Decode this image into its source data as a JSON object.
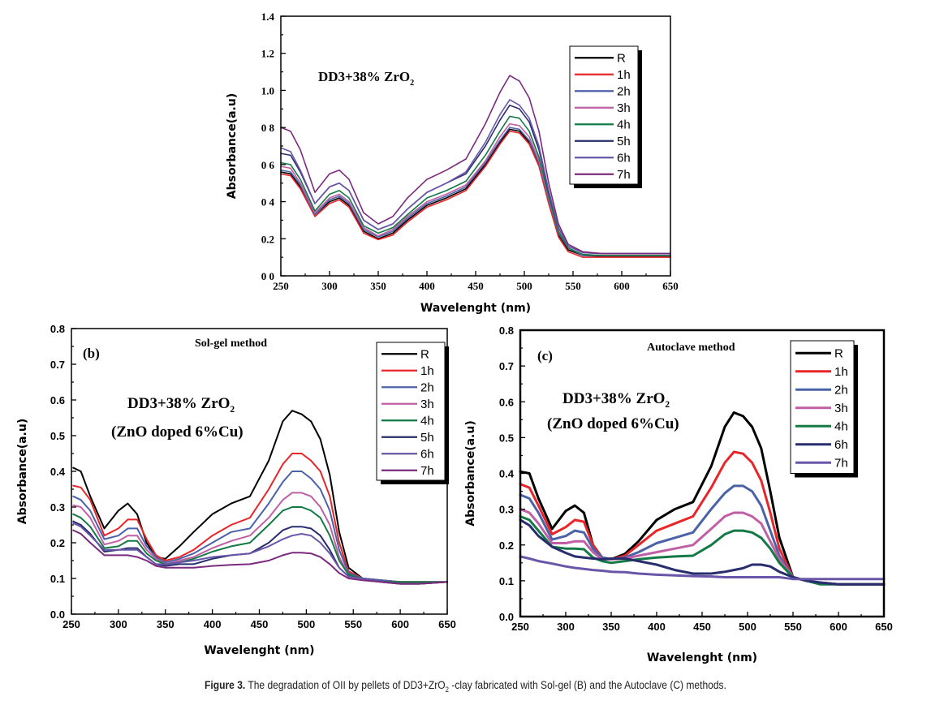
{
  "caption": {
    "label": "Figure 3.",
    "text_before": " The degradation of OII by pellets of DD3+ZrO",
    "subscript": "2",
    "text_after": " -clay fabricated with Sol-gel (B) and the Autoclave (C) methods."
  },
  "chart_data": [
    {
      "id": "a",
      "type": "line",
      "title": "",
      "annotations": [
        {
          "text": "DD3+38% ZrO",
          "sub": "2"
        }
      ],
      "xlabel": "Wavelenght (nm)",
      "ylabel": "Absorbance(a.u)",
      "xlim": [
        250,
        650
      ],
      "ylim": [
        0,
        1.4
      ],
      "xticks": [
        250,
        300,
        350,
        400,
        450,
        500,
        550,
        600,
        650
      ],
      "yticks": [
        0.0,
        0.2,
        0.4,
        0.6,
        0.8,
        1.0,
        1.2,
        1.4
      ],
      "ytick_labels": [
        "0 0",
        "0.2",
        "0 4",
        "0 6",
        "0 8",
        "1.0",
        "1.2",
        "1.4"
      ],
      "grid": false,
      "legend_position": "top-right",
      "x": [
        250,
        260,
        270,
        285,
        300,
        310,
        320,
        335,
        350,
        365,
        380,
        400,
        420,
        440,
        460,
        475,
        485,
        495,
        505,
        515,
        525,
        535,
        545,
        560,
        580,
        600,
        620,
        650
      ],
      "series": [
        {
          "name": "R",
          "color": "#000000",
          "values": [
            0.56,
            0.55,
            0.48,
            0.33,
            0.4,
            0.42,
            0.38,
            0.24,
            0.2,
            0.23,
            0.3,
            0.38,
            0.42,
            0.47,
            0.6,
            0.72,
            0.79,
            0.78,
            0.72,
            0.6,
            0.4,
            0.22,
            0.14,
            0.11,
            0.105,
            0.105,
            0.105,
            0.105
          ]
        },
        {
          "name": "1h",
          "color": "#e8262a",
          "values": [
            0.55,
            0.54,
            0.47,
            0.32,
            0.39,
            0.41,
            0.37,
            0.23,
            0.195,
            0.22,
            0.29,
            0.37,
            0.41,
            0.46,
            0.59,
            0.71,
            0.78,
            0.77,
            0.71,
            0.59,
            0.39,
            0.21,
            0.13,
            0.1,
            0.1,
            0.1,
            0.1,
            0.1
          ]
        },
        {
          "name": "2h",
          "color": "#4a63a8",
          "values": [
            0.57,
            0.56,
            0.49,
            0.33,
            0.41,
            0.43,
            0.39,
            0.25,
            0.21,
            0.24,
            0.31,
            0.39,
            0.43,
            0.48,
            0.61,
            0.73,
            0.8,
            0.79,
            0.73,
            0.61,
            0.41,
            0.23,
            0.15,
            0.11,
            0.11,
            0.11,
            0.11,
            0.11
          ]
        },
        {
          "name": "3h",
          "color": "#c05fa5",
          "values": [
            0.59,
            0.58,
            0.5,
            0.34,
            0.42,
            0.44,
            0.4,
            0.26,
            0.215,
            0.25,
            0.32,
            0.4,
            0.44,
            0.49,
            0.62,
            0.75,
            0.82,
            0.81,
            0.75,
            0.62,
            0.42,
            0.24,
            0.15,
            0.115,
            0.11,
            0.11,
            0.11,
            0.11
          ]
        },
        {
          "name": "4h",
          "color": "#137a45",
          "values": [
            0.61,
            0.6,
            0.52,
            0.35,
            0.44,
            0.46,
            0.42,
            0.27,
            0.23,
            0.26,
            0.33,
            0.42,
            0.46,
            0.51,
            0.65,
            0.78,
            0.86,
            0.85,
            0.78,
            0.64,
            0.43,
            0.24,
            0.15,
            0.115,
            0.11,
            0.11,
            0.11,
            0.11
          ]
        },
        {
          "name": "5h",
          "color": "#282d6e",
          "values": [
            0.66,
            0.65,
            0.56,
            0.39,
            0.48,
            0.5,
            0.46,
            0.3,
            0.25,
            0.28,
            0.36,
            0.45,
            0.5,
            0.55,
            0.7,
            0.84,
            0.92,
            0.9,
            0.83,
            0.68,
            0.45,
            0.26,
            0.16,
            0.125,
            0.12,
            0.12,
            0.12,
            0.12
          ]
        },
        {
          "name": "6h",
          "color": "#6a56a8",
          "values": [
            0.69,
            0.67,
            0.57,
            0.39,
            0.48,
            0.5,
            0.46,
            0.3,
            0.25,
            0.28,
            0.36,
            0.45,
            0.5,
            0.56,
            0.72,
            0.87,
            0.95,
            0.92,
            0.85,
            0.7,
            0.46,
            0.26,
            0.16,
            0.125,
            0.12,
            0.12,
            0.12,
            0.12
          ]
        },
        {
          "name": "7h",
          "color": "#7b2a7e",
          "values": [
            0.8,
            0.78,
            0.68,
            0.45,
            0.55,
            0.57,
            0.52,
            0.34,
            0.28,
            0.32,
            0.42,
            0.52,
            0.57,
            0.63,
            0.82,
            0.99,
            1.08,
            1.05,
            0.96,
            0.78,
            0.5,
            0.28,
            0.17,
            0.13,
            0.12,
            0.12,
            0.12,
            0.12
          ]
        }
      ]
    },
    {
      "id": "b",
      "type": "line",
      "title": "Sol-gel method",
      "panel_label": "(b)",
      "annotations": [
        {
          "text": "DD3+38% ZrO",
          "sub": "2"
        },
        {
          "text": "(ZnO doped 6%Cu)",
          "sub": ""
        }
      ],
      "xlabel": "Wavelenght (nm)",
      "ylabel": "Absorbance(a.u)",
      "xlim": [
        250,
        650
      ],
      "ylim": [
        0,
        0.8
      ],
      "xticks": [
        250,
        300,
        350,
        400,
        450,
        500,
        550,
        600,
        650
      ],
      "yticks": [
        0.0,
        0.1,
        0.2,
        0.3,
        0.4,
        0.5,
        0.6,
        0.7,
        0.8
      ],
      "ytick_labels": [
        "0.0",
        "0.1",
        "0.2",
        "0.3",
        "0.4",
        "0.5",
        "0.6",
        "0.7",
        "0.8"
      ],
      "grid": false,
      "legend_position": "top-right",
      "x": [
        252,
        260,
        270,
        285,
        300,
        310,
        320,
        330,
        340,
        350,
        365,
        380,
        400,
        420,
        440,
        460,
        475,
        485,
        495,
        505,
        515,
        525,
        535,
        545,
        560,
        580,
        600,
        620,
        650
      ],
      "series": [
        {
          "name": "R",
          "color": "#000000",
          "values": [
            0.41,
            0.4,
            0.33,
            0.24,
            0.29,
            0.31,
            0.28,
            0.2,
            0.16,
            0.155,
            0.19,
            0.23,
            0.28,
            0.31,
            0.33,
            0.43,
            0.54,
            0.57,
            0.56,
            0.54,
            0.49,
            0.39,
            0.23,
            0.13,
            0.1,
            0.095,
            0.09,
            0.09,
            0.09
          ]
        },
        {
          "name": "1h",
          "color": "#e8262a",
          "values": [
            0.36,
            0.355,
            0.32,
            0.22,
            0.24,
            0.265,
            0.265,
            0.21,
            0.165,
            0.15,
            0.16,
            0.18,
            0.22,
            0.25,
            0.27,
            0.35,
            0.42,
            0.45,
            0.45,
            0.43,
            0.4,
            0.33,
            0.2,
            0.12,
            0.1,
            0.095,
            0.09,
            0.09,
            0.09
          ]
        },
        {
          "name": "2h",
          "color": "#4a63a8",
          "values": [
            0.33,
            0.32,
            0.29,
            0.21,
            0.22,
            0.24,
            0.24,
            0.19,
            0.16,
            0.145,
            0.155,
            0.17,
            0.2,
            0.23,
            0.24,
            0.31,
            0.37,
            0.4,
            0.4,
            0.38,
            0.35,
            0.29,
            0.18,
            0.115,
            0.1,
            0.095,
            0.09,
            0.09,
            0.09
          ]
        },
        {
          "name": "3h",
          "color": "#c05fa5",
          "values": [
            0.305,
            0.3,
            0.27,
            0.195,
            0.205,
            0.22,
            0.22,
            0.18,
            0.155,
            0.14,
            0.15,
            0.16,
            0.185,
            0.205,
            0.22,
            0.27,
            0.32,
            0.34,
            0.34,
            0.33,
            0.3,
            0.25,
            0.16,
            0.11,
            0.1,
            0.09,
            0.09,
            0.09,
            0.09
          ]
        },
        {
          "name": "4h",
          "color": "#137a45",
          "values": [
            0.28,
            0.27,
            0.245,
            0.185,
            0.19,
            0.205,
            0.205,
            0.17,
            0.15,
            0.14,
            0.145,
            0.155,
            0.175,
            0.19,
            0.2,
            0.25,
            0.29,
            0.3,
            0.3,
            0.29,
            0.27,
            0.22,
            0.15,
            0.11,
            0.1,
            0.09,
            0.09,
            0.09,
            0.09
          ]
        },
        {
          "name": "5h",
          "color": "#282d6e",
          "values": [
            0.26,
            0.25,
            0.225,
            0.175,
            0.18,
            0.185,
            0.185,
            0.16,
            0.14,
            0.135,
            0.14,
            0.14,
            0.155,
            0.165,
            0.17,
            0.2,
            0.235,
            0.245,
            0.245,
            0.24,
            0.22,
            0.18,
            0.13,
            0.105,
            0.1,
            0.09,
            0.085,
            0.085,
            0.09
          ]
        },
        {
          "name": "6h",
          "color": "#6a56a8",
          "values": [
            0.255,
            0.245,
            0.22,
            0.18,
            0.18,
            0.18,
            0.18,
            0.16,
            0.14,
            0.14,
            0.145,
            0.15,
            0.16,
            0.165,
            0.17,
            0.19,
            0.21,
            0.22,
            0.225,
            0.22,
            0.2,
            0.17,
            0.13,
            0.105,
            0.1,
            0.09,
            0.085,
            0.085,
            0.09
          ]
        },
        {
          "name": "7h",
          "color": "#7b2a7e",
          "values": [
            0.235,
            0.225,
            0.2,
            0.165,
            0.165,
            0.165,
            0.16,
            0.15,
            0.135,
            0.13,
            0.13,
            0.13,
            0.135,
            0.138,
            0.14,
            0.15,
            0.165,
            0.172,
            0.172,
            0.17,
            0.16,
            0.14,
            0.115,
            0.1,
            0.095,
            0.09,
            0.085,
            0.085,
            0.09
          ]
        }
      ]
    },
    {
      "id": "c",
      "type": "line",
      "title": "Autoclave method",
      "panel_label": "(c)",
      "annotations": [
        {
          "text": "DD3+38% ZrO",
          "sub": "2"
        },
        {
          "text": "(ZnO doped 6%Cu)",
          "sub": ""
        }
      ],
      "xlabel": "Wavelenght (nm)",
      "ylabel": "Absorbance(a.u)",
      "xlim": [
        250,
        650
      ],
      "ylim": [
        0,
        0.8
      ],
      "xticks": [
        250,
        300,
        350,
        400,
        450,
        500,
        550,
        600,
        650
      ],
      "yticks": [
        0.0,
        0.1,
        0.2,
        0.3,
        0.4,
        0.5,
        0.6,
        0.7,
        0.8
      ],
      "ytick_labels": [
        "0.0",
        "0.1",
        "0.2",
        "0.3",
        "0.4",
        "0.5",
        "0.6",
        "0.7",
        "0.8"
      ],
      "grid": false,
      "legend_position": "top-right",
      "x": [
        250,
        260,
        270,
        285,
        300,
        310,
        320,
        330,
        340,
        350,
        365,
        380,
        400,
        420,
        440,
        460,
        475,
        485,
        495,
        505,
        515,
        525,
        535,
        550,
        565,
        580,
        600,
        620,
        650
      ],
      "series": [
        {
          "name": "R",
          "color": "#000000",
          "values": [
            0.405,
            0.4,
            0.33,
            0.245,
            0.295,
            0.31,
            0.29,
            0.2,
            0.165,
            0.16,
            0.175,
            0.21,
            0.27,
            0.3,
            0.32,
            0.42,
            0.53,
            0.57,
            0.56,
            0.53,
            0.47,
            0.35,
            0.22,
            0.11,
            0.1,
            0.095,
            0.09,
            0.09,
            0.09
          ]
        },
        {
          "name": "1h",
          "color": "#e8262a",
          "values": [
            0.37,
            0.36,
            0.31,
            0.23,
            0.25,
            0.27,
            0.265,
            0.2,
            0.165,
            0.16,
            0.17,
            0.2,
            0.24,
            0.26,
            0.28,
            0.36,
            0.43,
            0.46,
            0.455,
            0.43,
            0.38,
            0.29,
            0.19,
            0.11,
            0.1,
            0.095,
            0.09,
            0.09,
            0.09
          ]
        },
        {
          "name": "2h",
          "color": "#4a63a8",
          "values": [
            0.34,
            0.33,
            0.29,
            0.215,
            0.225,
            0.24,
            0.235,
            0.19,
            0.165,
            0.16,
            0.165,
            0.18,
            0.205,
            0.22,
            0.235,
            0.3,
            0.345,
            0.365,
            0.365,
            0.35,
            0.31,
            0.24,
            0.17,
            0.11,
            0.1,
            0.095,
            0.09,
            0.09,
            0.09
          ]
        },
        {
          "name": "3h",
          "color": "#c05fa5",
          "values": [
            0.3,
            0.29,
            0.26,
            0.205,
            0.205,
            0.21,
            0.21,
            0.18,
            0.16,
            0.16,
            0.162,
            0.17,
            0.18,
            0.19,
            0.2,
            0.245,
            0.28,
            0.29,
            0.29,
            0.28,
            0.26,
            0.21,
            0.16,
            0.11,
            0.1,
            0.095,
            0.09,
            0.09,
            0.09
          ]
        },
        {
          "name": "4h",
          "color": "#137a45",
          "values": [
            0.28,
            0.27,
            0.24,
            0.195,
            0.19,
            0.19,
            0.188,
            0.165,
            0.155,
            0.15,
            0.155,
            0.16,
            0.165,
            0.168,
            0.17,
            0.2,
            0.23,
            0.24,
            0.24,
            0.235,
            0.22,
            0.19,
            0.15,
            0.11,
            0.1,
            0.09,
            0.09,
            0.09,
            0.09
          ]
        },
        {
          "name": "6h",
          "color": "#282d6e",
          "values": [
            0.27,
            0.255,
            0.225,
            0.195,
            0.178,
            0.168,
            0.165,
            0.162,
            0.16,
            0.162,
            0.162,
            0.155,
            0.145,
            0.13,
            0.12,
            0.12,
            0.125,
            0.13,
            0.135,
            0.145,
            0.145,
            0.14,
            0.125,
            0.11,
            0.1,
            0.095,
            0.09,
            0.09,
            0.09
          ]
        },
        {
          "name": "7h",
          "color": "#6a56a8",
          "values": [
            0.168,
            0.162,
            0.155,
            0.148,
            0.14,
            0.136,
            0.133,
            0.13,
            0.128,
            0.125,
            0.124,
            0.12,
            0.117,
            0.115,
            0.113,
            0.112,
            0.11,
            0.11,
            0.11,
            0.11,
            0.11,
            0.11,
            0.11,
            0.105,
            0.105,
            0.105,
            0.105,
            0.105,
            0.105
          ]
        }
      ]
    }
  ]
}
